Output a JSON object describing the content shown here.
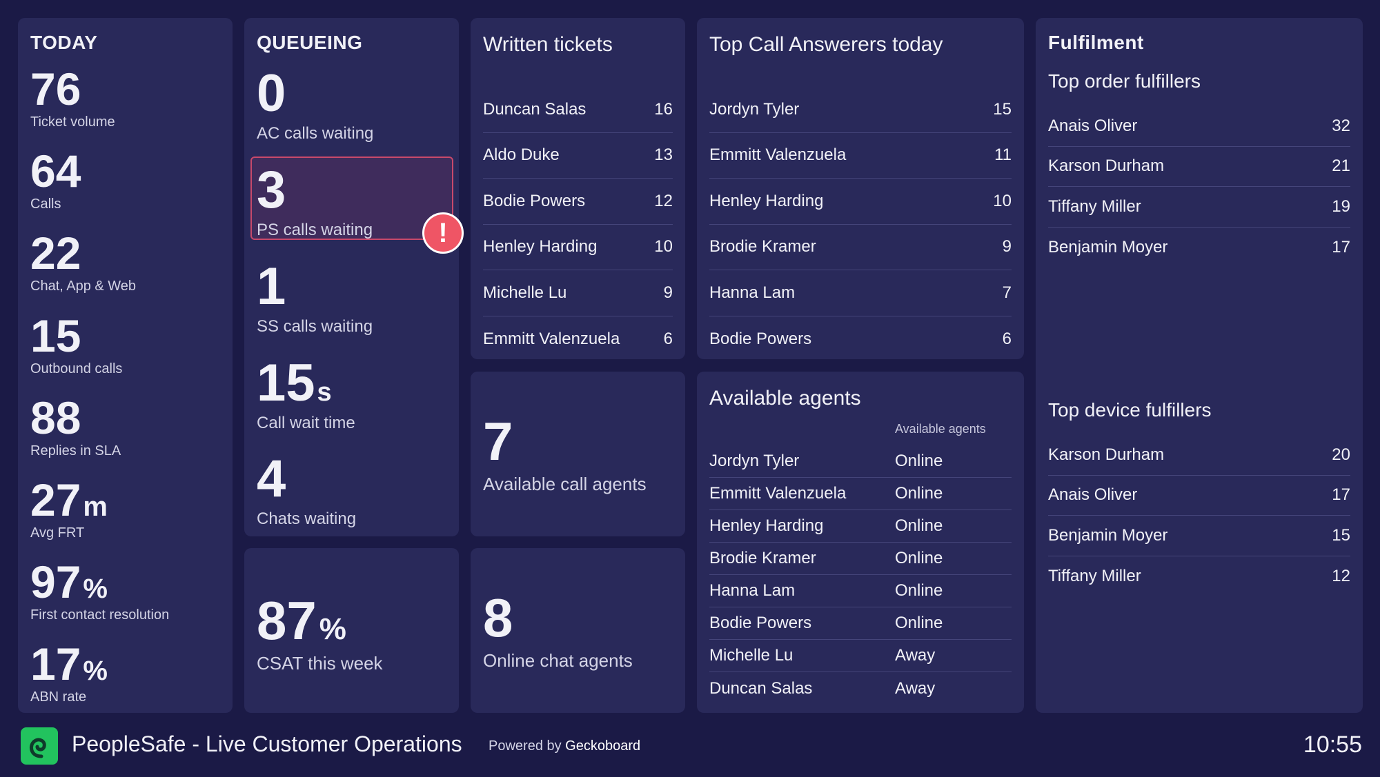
{
  "today": {
    "title": "TODAY",
    "stats": [
      {
        "value": "76",
        "unit": "",
        "label": "Ticket volume"
      },
      {
        "value": "64",
        "unit": "",
        "label": "Calls"
      },
      {
        "value": "22",
        "unit": "",
        "label": "Chat, App & Web"
      },
      {
        "value": "15",
        "unit": "",
        "label": "Outbound calls"
      },
      {
        "value": "88",
        "unit": "",
        "label": "Replies in SLA"
      },
      {
        "value": "27",
        "unit": "m",
        "label": "Avg FRT"
      },
      {
        "value": "97",
        "unit": "%",
        "label": "First contact resolution"
      },
      {
        "value": "17",
        "unit": "%",
        "label": "ABN rate"
      }
    ]
  },
  "queueing": {
    "title": "QUEUEING",
    "stats": [
      {
        "value": "0",
        "unit": "",
        "label": "AC calls waiting"
      },
      {
        "value": "3",
        "unit": "",
        "label": "PS calls waiting"
      },
      {
        "value": "1",
        "unit": "",
        "label": "SS calls waiting"
      },
      {
        "value": "15",
        "unit": "s",
        "label": "Call wait time"
      },
      {
        "value": "4",
        "unit": "",
        "label": "Chats waiting"
      }
    ],
    "alert_symbol": "!"
  },
  "csat": {
    "value": "87",
    "unit": "%",
    "label": "CSAT this week"
  },
  "written_tickets": {
    "title": "Written tickets",
    "rows": [
      {
        "name": "Duncan Salas",
        "value": "16"
      },
      {
        "name": "Aldo Duke",
        "value": "13"
      },
      {
        "name": "Bodie Powers",
        "value": "12"
      },
      {
        "name": "Henley Harding",
        "value": "10"
      },
      {
        "name": "Michelle Lu",
        "value": "9"
      },
      {
        "name": "Emmitt Valenzuela",
        "value": "6"
      }
    ]
  },
  "call_agents": {
    "value": "7",
    "label": "Available call agents"
  },
  "chat_agents": {
    "value": "8",
    "label": "Online chat agents"
  },
  "top_call": {
    "title": "Top Call Answerers today",
    "rows": [
      {
        "name": "Jordyn Tyler",
        "value": "15"
      },
      {
        "name": "Emmitt Valenzuela",
        "value": "11"
      },
      {
        "name": "Henley Harding",
        "value": "10"
      },
      {
        "name": "Brodie Kramer",
        "value": "9"
      },
      {
        "name": "Hanna Lam",
        "value": "7"
      },
      {
        "name": "Bodie Powers",
        "value": "6"
      }
    ]
  },
  "available_agents": {
    "title": "Available agents",
    "column_header": "Available agents",
    "rows": [
      {
        "name": "Jordyn Tyler",
        "status": "Online"
      },
      {
        "name": "Emmitt Valenzuela",
        "status": "Online"
      },
      {
        "name": "Henley Harding",
        "status": "Online"
      },
      {
        "name": "Brodie Kramer",
        "status": "Online"
      },
      {
        "name": "Hanna Lam",
        "status": "Online"
      },
      {
        "name": "Bodie Powers",
        "status": "Online"
      },
      {
        "name": "Michelle Lu",
        "status": "Away"
      },
      {
        "name": "Duncan Salas",
        "status": "Away"
      }
    ]
  },
  "fulfilment": {
    "title": "Fulfilment",
    "order_title": "Top order fulfillers",
    "order_rows": [
      {
        "name": "Anais Oliver",
        "value": "32"
      },
      {
        "name": "Karson Durham",
        "value": "21"
      },
      {
        "name": "Tiffany Miller",
        "value": "19"
      },
      {
        "name": "Benjamin Moyer",
        "value": "17"
      }
    ],
    "device_title": "Top device fulfillers",
    "device_rows": [
      {
        "name": "Karson Durham",
        "value": "20"
      },
      {
        "name": "Anais Oliver",
        "value": "17"
      },
      {
        "name": "Benjamin Moyer",
        "value": "15"
      },
      {
        "name": "Tiffany Miller",
        "value": "12"
      }
    ]
  },
  "footer": {
    "title": "PeopleSafe - Live Customer Operations",
    "powered_prefix": "Powered by ",
    "powered_brand": "Geckoboard",
    "clock": "10:55",
    "logo_icon": "geckoboard-logo-icon"
  }
}
